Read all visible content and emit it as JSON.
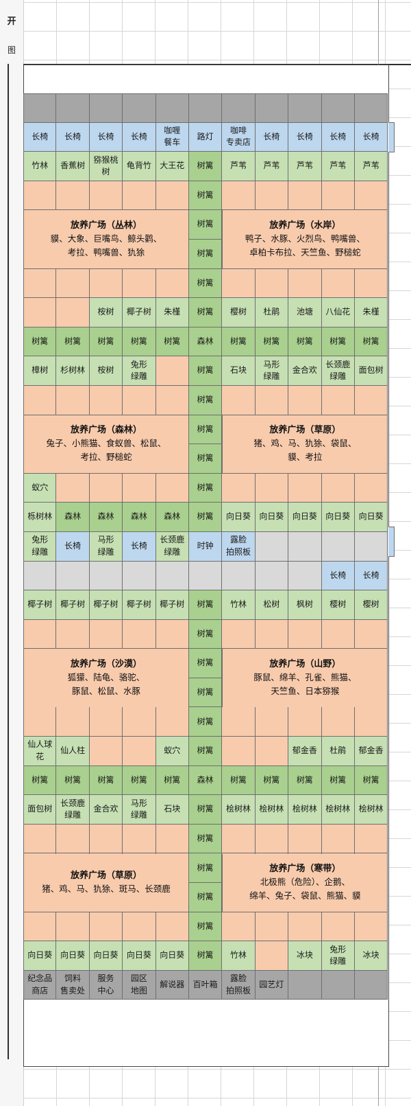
{
  "row_header": {
    "labels": [
      "开",
      "图"
    ]
  },
  "cells": [
    [
      "",
      "",
      "",
      "",
      "",
      "",
      "",
      "",
      "",
      "",
      ""
    ],
    [
      "长椅",
      "长椅",
      "长椅",
      "长椅",
      "咖喱\n餐车",
      "路灯",
      "咖啡\n专卖店",
      "长椅",
      "长椅",
      "长椅",
      "长椅"
    ],
    [
      "竹林",
      "香蕉树",
      "猕猴桃\n树",
      "龟背竹",
      "大王花",
      "树篱",
      "芦苇",
      "芦苇",
      "芦苇",
      "芦苇",
      "芦苇"
    ],
    [
      "",
      "",
      "",
      "",
      "",
      "树篱",
      "",
      "",
      "",
      "",
      ""
    ],
    [
      "",
      "",
      "",
      "",
      "",
      "树篱",
      "",
      "",
      "",
      "",
      ""
    ],
    [
      "",
      "",
      "",
      "",
      "",
      "树篱",
      "",
      "",
      "",
      "",
      ""
    ],
    [
      "",
      "",
      "",
      "",
      "",
      "树篱",
      "",
      "",
      "",
      "",
      ""
    ],
    [
      "",
      "",
      "桉树",
      "椰子树",
      "朱槿",
      "树篱",
      "樱树",
      "杜鹃",
      "池塘",
      "八仙花",
      "朱槿"
    ],
    [
      "树篱",
      "树篱",
      "树篱",
      "树篱",
      "树篱",
      "森林",
      "树篱",
      "树篱",
      "树篱",
      "树篱",
      "树篱"
    ],
    [
      "樟树",
      "杉树林",
      "桉树",
      "兔形\n绿雕",
      "",
      "树篱",
      "石块",
      "马形\n绿雕",
      "金合欢",
      "长颈鹿\n绿雕",
      "面包树"
    ],
    [
      "",
      "",
      "",
      "",
      "",
      "树篱",
      "",
      "",
      "",
      "",
      ""
    ],
    [
      "",
      "",
      "",
      "",
      "",
      "树篱",
      "",
      "",
      "",
      "",
      ""
    ],
    [
      "",
      "",
      "",
      "",
      "",
      "树篱",
      "",
      "",
      "",
      "",
      ""
    ],
    [
      "蚁穴",
      "",
      "",
      "",
      "",
      "树篱",
      "",
      "",
      "",
      "",
      ""
    ],
    [
      "栎树林",
      "森林",
      "森林",
      "森林",
      "森林",
      "树篱",
      "向日葵",
      "向日葵",
      "向日葵",
      "向日葵",
      "向日葵"
    ],
    [
      "兔形\n绿雕",
      "长椅",
      "马形\n绿雕",
      "长椅",
      "长颈鹿\n绿雕",
      "时钟",
      "露脸\n拍照板",
      "",
      "",
      "",
      ""
    ],
    [
      "",
      "",
      "",
      "",
      "",
      "",
      "",
      "",
      "",
      "长椅",
      "长椅"
    ],
    [
      "椰子树",
      "椰子树",
      "椰子树",
      "椰子树",
      "椰子树",
      "树篱",
      "竹林",
      "松树",
      "枫树",
      "樱树",
      "樱树"
    ],
    [
      "",
      "",
      "",
      "",
      "",
      "树篱",
      "",
      "",
      "",
      "",
      ""
    ],
    [
      "",
      "",
      "",
      "",
      "",
      "树篱",
      "",
      "",
      "",
      "",
      ""
    ],
    [
      "",
      "",
      "",
      "",
      "",
      "树篱",
      "",
      "",
      "",
      "",
      ""
    ],
    [
      "",
      "",
      "",
      "",
      "",
      "树篱",
      "",
      "",
      "",
      "",
      ""
    ],
    [
      "仙人球\n花",
      "仙人柱",
      "",
      "",
      "蚁穴",
      "树篱",
      "",
      "",
      "郁金香",
      "杜鹃",
      "郁金香"
    ],
    [
      "树篱",
      "树篱",
      "树篱",
      "树篱",
      "树篱",
      "森林",
      "树篱",
      "树篱",
      "树篱",
      "树篱",
      "树篱"
    ],
    [
      "面包树",
      "长颈鹿\n绿雕",
      "金合欢",
      "马形\n绿雕",
      "石块",
      "树篱",
      "桧树林",
      "桧树林",
      "桧树林",
      "桧树林",
      "桧树林"
    ],
    [
      "",
      "",
      "",
      "",
      "",
      "树篱",
      "",
      "",
      "",
      "",
      ""
    ],
    [
      "",
      "",
      "",
      "",
      "",
      "树篱",
      "",
      "",
      "",
      "",
      ""
    ],
    [
      "",
      "",
      "",
      "",
      "",
      "树篱",
      "",
      "",
      "",
      "",
      ""
    ],
    [
      "",
      "",
      "",
      "",
      "",
      "树篱",
      "",
      "",
      "",
      "",
      ""
    ],
    [
      "向日葵",
      "向日葵",
      "向日葵",
      "向日葵",
      "向日葵",
      "树篱",
      "竹林",
      "",
      "冰块",
      "兔形\n绿雕",
      "冰块"
    ],
    [
      "纪念品\n商店",
      "饲料\n售卖处",
      "服务\n中心",
      "园区\n地图",
      "解说器",
      "百叶箱",
      "露脸\n拍照板",
      "园艺灯",
      "",
      "",
      ""
    ],
    [
      "",
      "",
      "",
      "",
      "",
      "",
      "",
      "",
      "",
      "",
      ""
    ]
  ],
  "zones": [
    {
      "title": "放养广场（丛林）",
      "lines": [
        "貘、大象、巨嘴鸟、鲸头鹳、",
        "考拉、鸭嘴兽、犰狳"
      ]
    },
    {
      "title": "放养广场（水岸）",
      "lines": [
        "鸭子、水豚、火烈鸟、鸭嘴兽、",
        "卓柏卡布拉、天竺鱼、野槌蛇"
      ]
    },
    {
      "title": "放养广场（森林）",
      "lines": [
        "兔子、小熊猫、食蚁兽、松鼠、",
        "考拉、野槌蛇"
      ]
    },
    {
      "title": "放养广场（草原）",
      "lines": [
        "猪、鸡、马、犰狳、袋鼠、",
        "貘、考拉"
      ]
    },
    {
      "title": "放养广场（沙漠）",
      "lines": [
        "狐獴、陆龟、骆驼、",
        "豚鼠、松鼠、水豚"
      ]
    },
    {
      "title": "放养广场（山野）",
      "lines": [
        "豚鼠、绵羊、孔雀、熊猫、",
        "天竺鱼、日本猕猴"
      ]
    },
    {
      "title": "放养广场（草原）",
      "lines": [
        "猪、鸡、马、犰狳、斑马、长颈鹿"
      ]
    },
    {
      "title": "放养广场（寒带）",
      "lines": [
        "北极熊（危险）、企鹅、",
        "绵羊、兔子、袋鼠、熊猫、貘"
      ]
    }
  ],
  "legend_colors": {
    "path": "#a6a6a6",
    "walkway": "#d9d9d9",
    "bench": "#bdd7ee",
    "plant": "#c6e0b4",
    "hedge": "#a9d08e",
    "pasture": "#f8cbad"
  }
}
